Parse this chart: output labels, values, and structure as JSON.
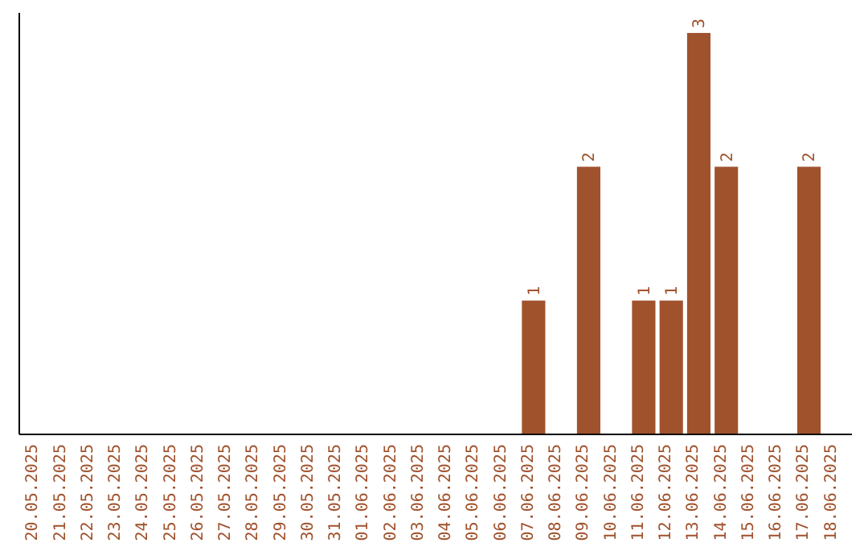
{
  "chart_data": {
    "type": "bar",
    "categories": [
      "20.05.2025",
      "21.05.2025",
      "22.05.2025",
      "23.05.2025",
      "24.05.2025",
      "25.05.2025",
      "26.05.2025",
      "27.05.2025",
      "28.05.2025",
      "29.05.2025",
      "30.05.2025",
      "31.05.2025",
      "01.06.2025",
      "02.06.2025",
      "03.06.2025",
      "04.06.2025",
      "05.06.2025",
      "06.06.2025",
      "07.06.2025",
      "08.06.2025",
      "09.06.2025",
      "10.06.2025",
      "11.06.2025",
      "12.06.2025",
      "13.06.2025",
      "14.06.2025",
      "15.06.2025",
      "16.06.2025",
      "17.06.2025",
      "18.06.2025"
    ],
    "values": [
      null,
      null,
      null,
      null,
      null,
      null,
      null,
      null,
      null,
      null,
      null,
      null,
      null,
      null,
      null,
      null,
      null,
      null,
      1,
      null,
      2,
      null,
      1,
      1,
      3,
      2,
      null,
      null,
      2,
      null
    ],
    "data_labels": true,
    "color": "#a0522d"
  }
}
